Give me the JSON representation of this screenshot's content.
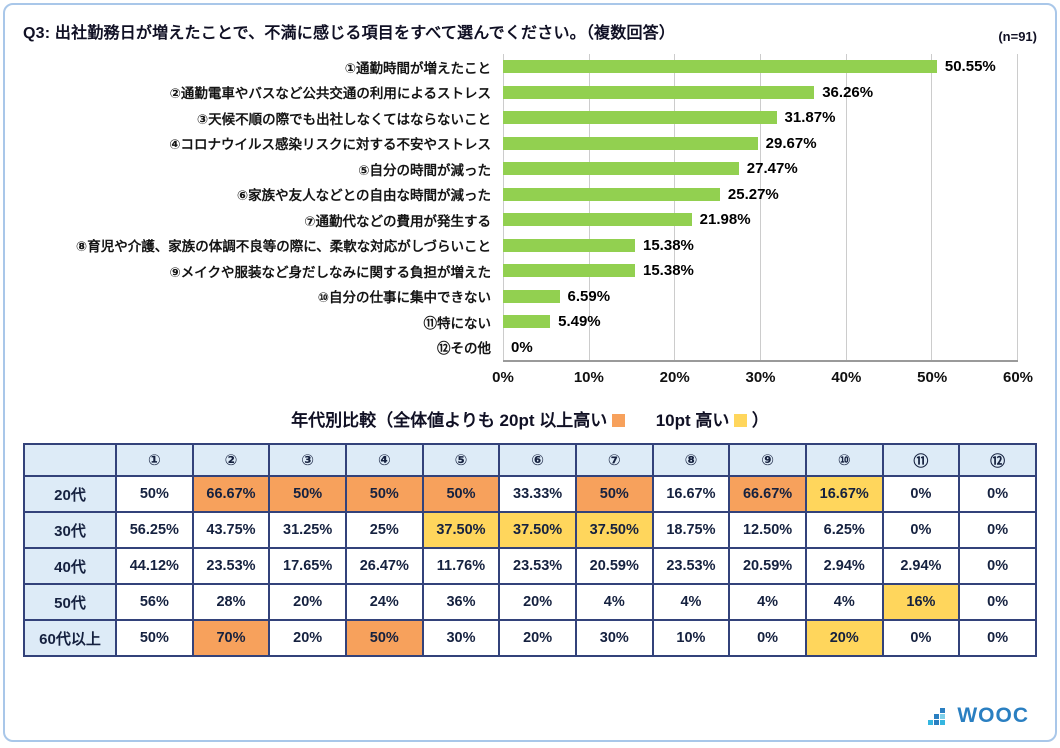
{
  "header": {
    "title": "Q3: 出社勤務日が増えたことで、不満に感じる項目をすべて選んでください。（複数回答）",
    "sample_size": "(n=91)"
  },
  "chart_data": {
    "type": "bar",
    "orientation": "horizontal",
    "title": "",
    "categories": [
      "①通勤時間が増えたこと",
      "②通勤電車やバスなど公共交通の利用によるストレス",
      "③天候不順の際でも出社しなくてはならないこと",
      "④コロナウイルス感染リスクに対する不安やストレス",
      "⑤自分の時間が減った",
      "⑥家族や友人などとの自由な時間が減った",
      "⑦通勤代などの費用が発生する",
      "⑧育児や介護、家族の体調不良等の際に、柔軟な対応がしづらいこと",
      "⑨メイクや服装など身だしなみに関する負担が増えた",
      "⑩自分の仕事に集中できない",
      "⑪特にない",
      "⑫その他"
    ],
    "values": [
      50.55,
      36.26,
      31.87,
      29.67,
      27.47,
      25.27,
      21.98,
      15.38,
      15.38,
      6.59,
      5.49,
      0
    ],
    "value_labels": [
      "50.55%",
      "36.26%",
      "31.87%",
      "29.67%",
      "27.47%",
      "25.27%",
      "21.98%",
      "15.38%",
      "15.38%",
      "6.59%",
      "5.49%",
      "0%"
    ],
    "xlim": [
      0,
      60
    ],
    "x_ticks": [
      "0%",
      "10%",
      "20%",
      "30%",
      "40%",
      "50%",
      "60%"
    ],
    "bar_color": "#92D050",
    "grid": true,
    "legend_position": "none"
  },
  "table_section": {
    "title_prefix": "年代別比較（全体値よりも 20pt 以上高い",
    "title_mid": "10pt 高い",
    "title_suffix": "）",
    "highlight_colors": {
      "high20": "#F7A15C",
      "high10": "#FFD65C"
    },
    "columns": [
      "",
      "①",
      "②",
      "③",
      "④",
      "⑤",
      "⑥",
      "⑦",
      "⑧",
      "⑨",
      "⑩",
      "⑪",
      "⑫"
    ],
    "rows": [
      {
        "label": "20代",
        "cells": [
          {
            "text": "50%",
            "hl": "none"
          },
          {
            "text": "66.67%",
            "hl": "high20"
          },
          {
            "text": "50%",
            "hl": "high20"
          },
          {
            "text": "50%",
            "hl": "high20"
          },
          {
            "text": "50%",
            "hl": "high20"
          },
          {
            "text": "33.33%",
            "hl": "none"
          },
          {
            "text": "50%",
            "hl": "high20"
          },
          {
            "text": "16.67%",
            "hl": "none"
          },
          {
            "text": "66.67%",
            "hl": "high20"
          },
          {
            "text": "16.67%",
            "hl": "high10"
          },
          {
            "text": "0%",
            "hl": "none"
          },
          {
            "text": "0%",
            "hl": "none"
          }
        ]
      },
      {
        "label": "30代",
        "cells": [
          {
            "text": "56.25%",
            "hl": "none"
          },
          {
            "text": "43.75%",
            "hl": "none"
          },
          {
            "text": "31.25%",
            "hl": "none"
          },
          {
            "text": "25%",
            "hl": "none"
          },
          {
            "text": "37.50%",
            "hl": "high10"
          },
          {
            "text": "37.50%",
            "hl": "high10"
          },
          {
            "text": "37.50%",
            "hl": "high10"
          },
          {
            "text": "18.75%",
            "hl": "none"
          },
          {
            "text": "12.50%",
            "hl": "none"
          },
          {
            "text": "6.25%",
            "hl": "none"
          },
          {
            "text": "0%",
            "hl": "none"
          },
          {
            "text": "0%",
            "hl": "none"
          }
        ]
      },
      {
        "label": "40代",
        "cells": [
          {
            "text": "44.12%",
            "hl": "none"
          },
          {
            "text": "23.53%",
            "hl": "none"
          },
          {
            "text": "17.65%",
            "hl": "none"
          },
          {
            "text": "26.47%",
            "hl": "none"
          },
          {
            "text": "11.76%",
            "hl": "none"
          },
          {
            "text": "23.53%",
            "hl": "none"
          },
          {
            "text": "20.59%",
            "hl": "none"
          },
          {
            "text": "23.53%",
            "hl": "none"
          },
          {
            "text": "20.59%",
            "hl": "none"
          },
          {
            "text": "2.94%",
            "hl": "none"
          },
          {
            "text": "2.94%",
            "hl": "none"
          },
          {
            "text": "0%",
            "hl": "none"
          }
        ]
      },
      {
        "label": "50代",
        "cells": [
          {
            "text": "56%",
            "hl": "none"
          },
          {
            "text": "28%",
            "hl": "none"
          },
          {
            "text": "20%",
            "hl": "none"
          },
          {
            "text": "24%",
            "hl": "none"
          },
          {
            "text": "36%",
            "hl": "none"
          },
          {
            "text": "20%",
            "hl": "none"
          },
          {
            "text": "4%",
            "hl": "none"
          },
          {
            "text": "4%",
            "hl": "none"
          },
          {
            "text": "4%",
            "hl": "none"
          },
          {
            "text": "4%",
            "hl": "none"
          },
          {
            "text": "16%",
            "hl": "high10"
          },
          {
            "text": "0%",
            "hl": "none"
          }
        ]
      },
      {
        "label": "60代以上",
        "cells": [
          {
            "text": "50%",
            "hl": "none"
          },
          {
            "text": "70%",
            "hl": "high20"
          },
          {
            "text": "20%",
            "hl": "none"
          },
          {
            "text": "50%",
            "hl": "high20"
          },
          {
            "text": "30%",
            "hl": "none"
          },
          {
            "text": "20%",
            "hl": "none"
          },
          {
            "text": "30%",
            "hl": "none"
          },
          {
            "text": "10%",
            "hl": "none"
          },
          {
            "text": "0%",
            "hl": "none"
          },
          {
            "text": "20%",
            "hl": "high10"
          },
          {
            "text": "0%",
            "hl": "none"
          },
          {
            "text": "0%",
            "hl": "none"
          }
        ]
      }
    ]
  },
  "footer": {
    "logo_text": "WOOC",
    "logo_color": "#2a7fc1"
  }
}
